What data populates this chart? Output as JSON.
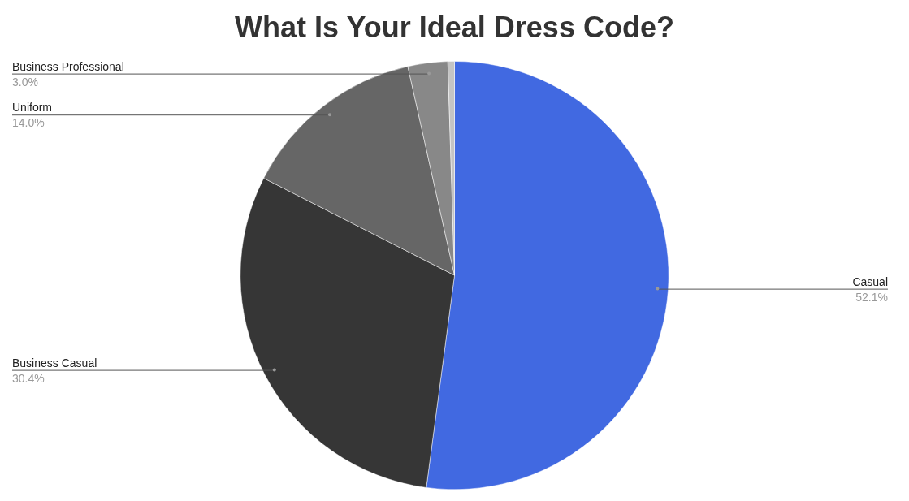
{
  "chart_data": {
    "type": "pie",
    "title": "What Is Your Ideal Dress Code?",
    "categories": [
      "Casual",
      "Business Casual",
      "Uniform",
      "Business Professional",
      null
    ],
    "values": [
      52.1,
      30.4,
      14.0,
      3.0,
      0.5
    ],
    "colors": [
      "#4169e1",
      "#363636",
      "#666666",
      "#888888",
      "#c4c4c4"
    ],
    "value_labels": [
      "52.1%",
      "30.4%",
      "14.0%",
      "3.0%",
      null
    ],
    "legend": false
  }
}
